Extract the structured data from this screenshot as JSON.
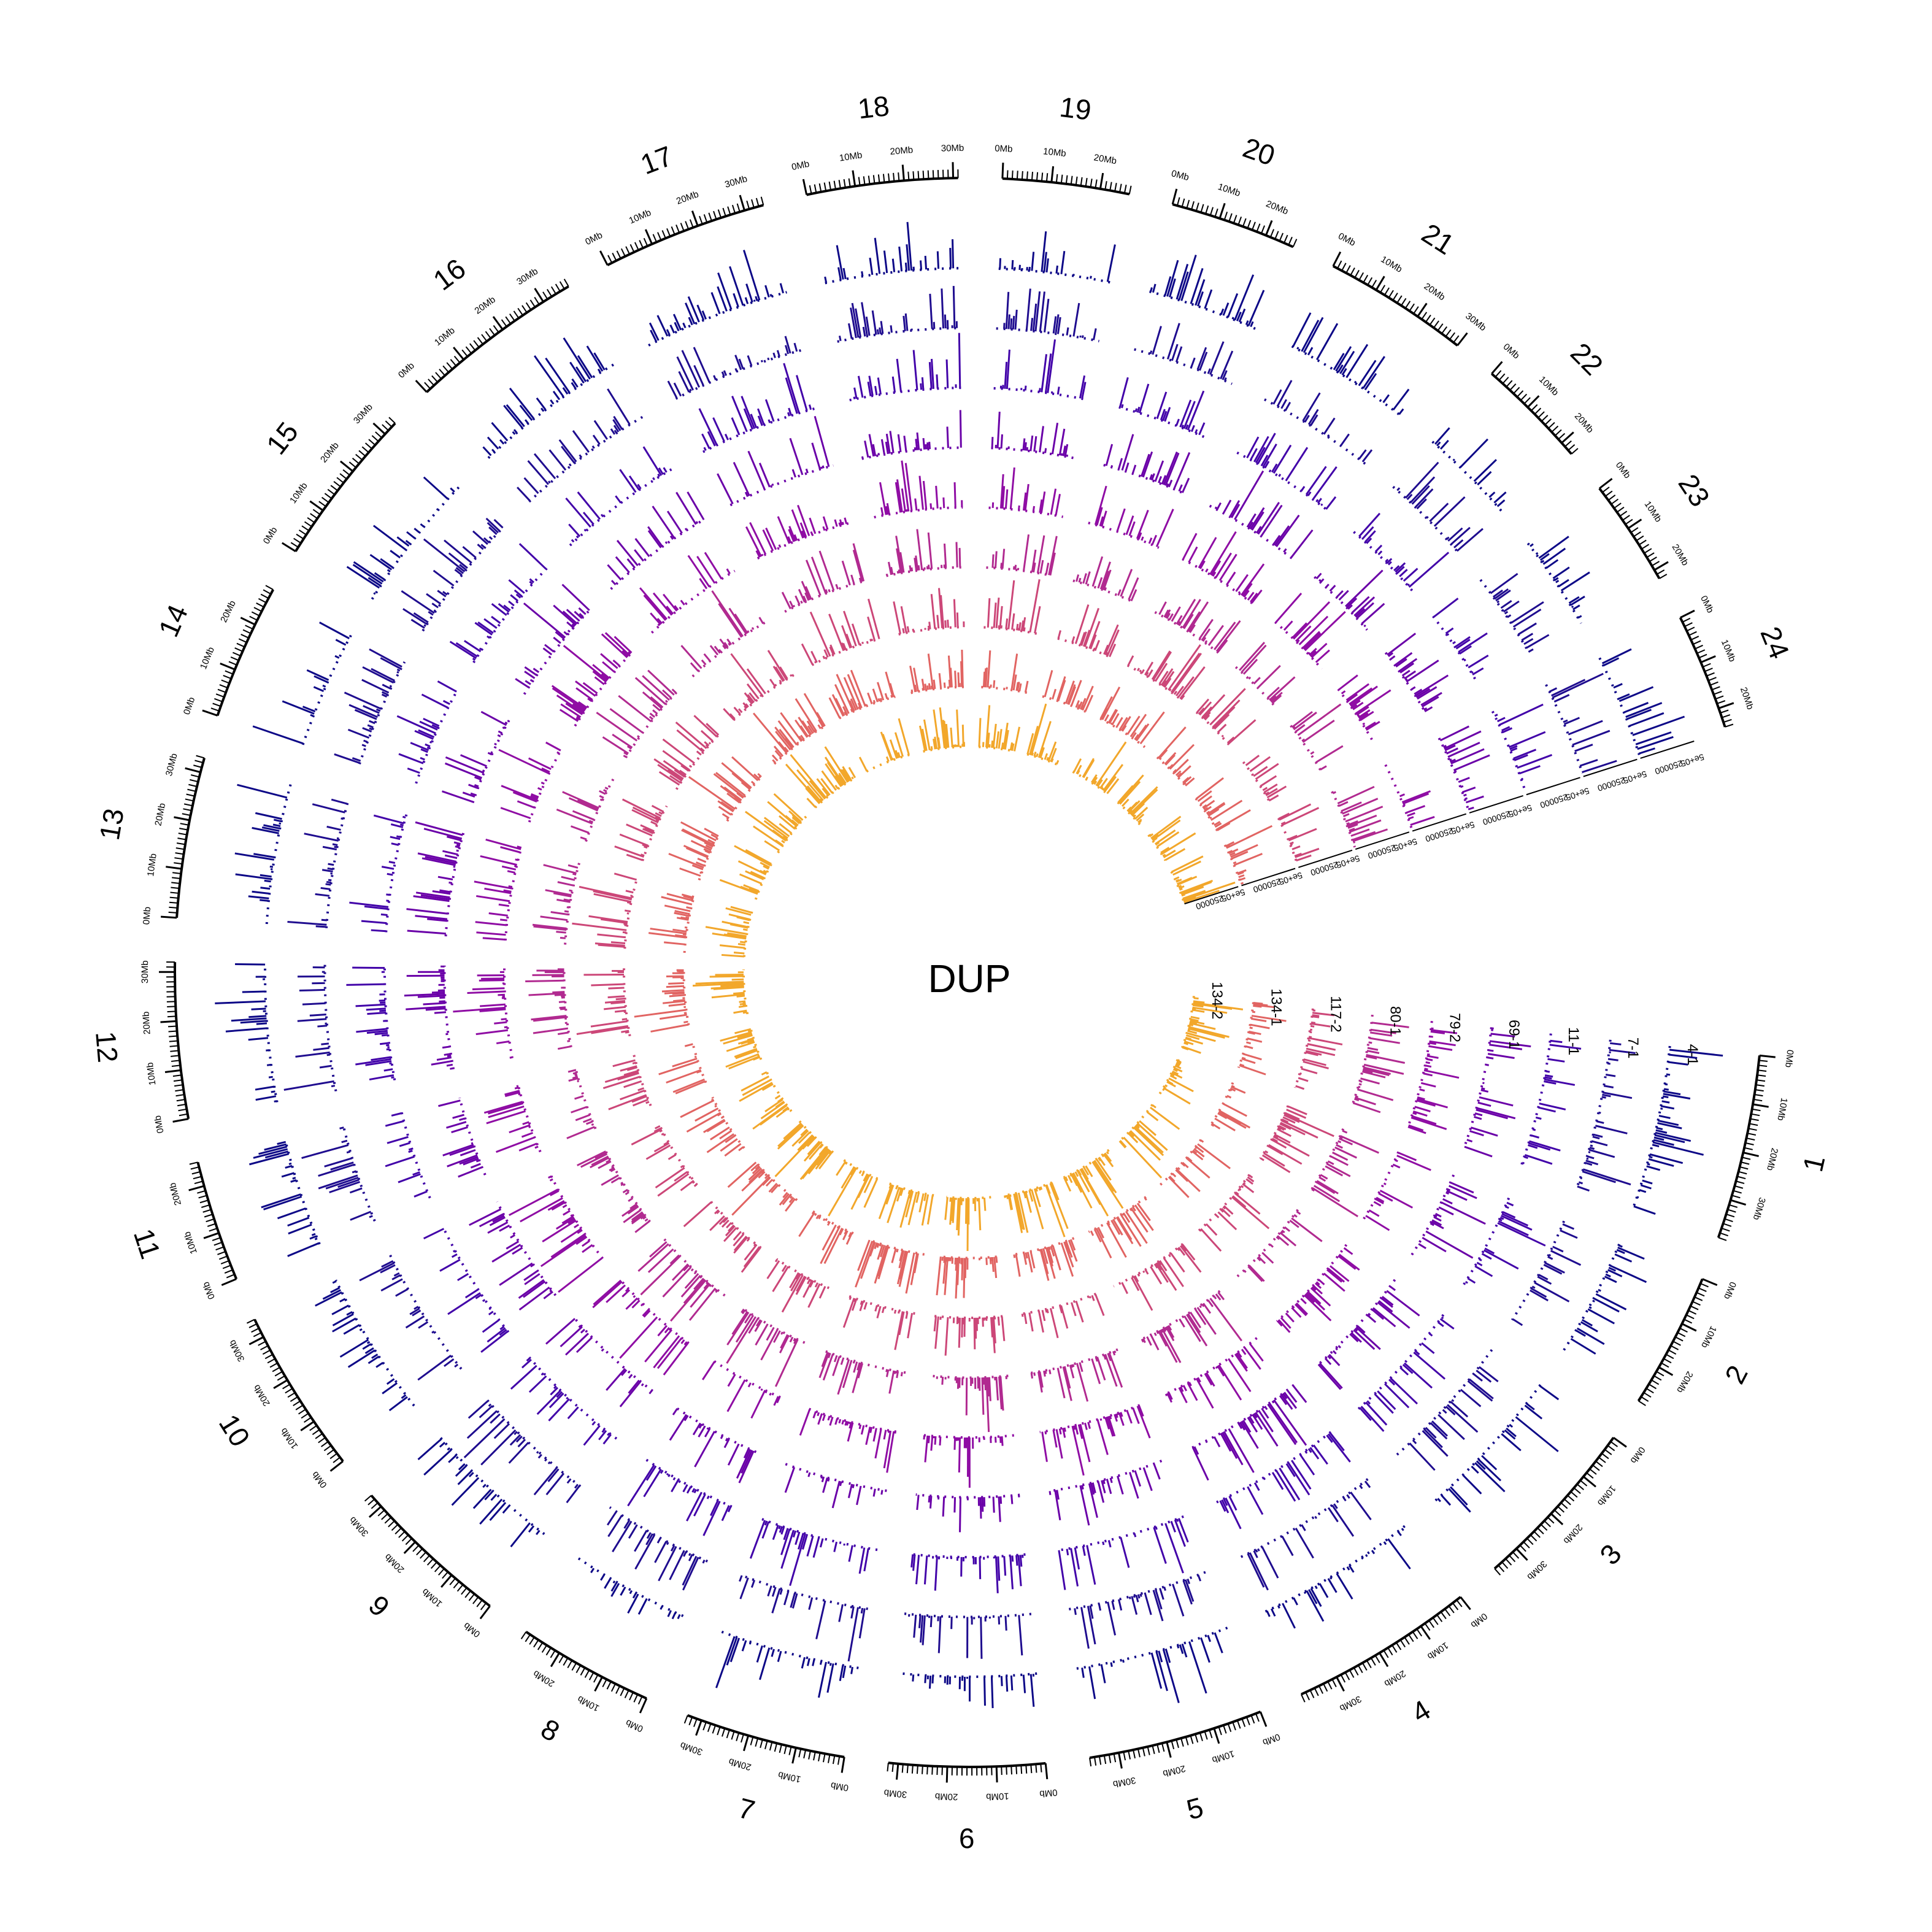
{
  "chart_data": {
    "type": "circos",
    "title": "DUP",
    "chromosomes": [
      {
        "name": "1",
        "length_mb": 38
      },
      {
        "name": "2",
        "length_mb": 28
      },
      {
        "name": "3",
        "length_mb": 36
      },
      {
        "name": "4",
        "length_mb": 38
      },
      {
        "name": "5",
        "length_mb": 36
      },
      {
        "name": "6",
        "length_mb": 32
      },
      {
        "name": "7",
        "length_mb": 33
      },
      {
        "name": "8",
        "length_mb": 28
      },
      {
        "name": "9",
        "length_mb": 33
      },
      {
        "name": "10",
        "length_mb": 34
      },
      {
        "name": "11",
        "length_mb": 25
      },
      {
        "name": "12",
        "length_mb": 32
      },
      {
        "name": "13",
        "length_mb": 33
      },
      {
        "name": "14",
        "length_mb": 28
      },
      {
        "name": "15",
        "length_mb": 33
      },
      {
        "name": "16",
        "length_mb": 36
      },
      {
        "name": "17",
        "length_mb": 34
      },
      {
        "name": "18",
        "length_mb": 31
      },
      {
        "name": "19",
        "length_mb": 26
      },
      {
        "name": "20",
        "length_mb": 26
      },
      {
        "name": "21",
        "length_mb": 30
      },
      {
        "name": "22",
        "length_mb": 23
      },
      {
        "name": "23",
        "length_mb": 22
      },
      {
        "name": "24",
        "length_mb": 24
      }
    ],
    "tick_unit": "Mb",
    "tracks": [
      {
        "name": "4-1",
        "color": "#0d0887"
      },
      {
        "name": "7-1",
        "color": "#1f0c8f"
      },
      {
        "name": "11-1",
        "color": "#4203a9"
      },
      {
        "name": "69-1",
        "color": "#6a00a8"
      },
      {
        "name": "79-2",
        "color": "#8f0da4"
      },
      {
        "name": "80-1",
        "color": "#b12a90"
      },
      {
        "name": "117-2",
        "color": "#cc4778"
      },
      {
        "name": "134-1",
        "color": "#e16462"
      },
      {
        "name": "134-2",
        "color": "#f2a72b"
      }
    ],
    "track_axis_ticks": [
      "250000",
      "5e+05"
    ],
    "notes_colors": {
      "outer_track": "#000000",
      "inner_track": "#e8b315"
    }
  }
}
